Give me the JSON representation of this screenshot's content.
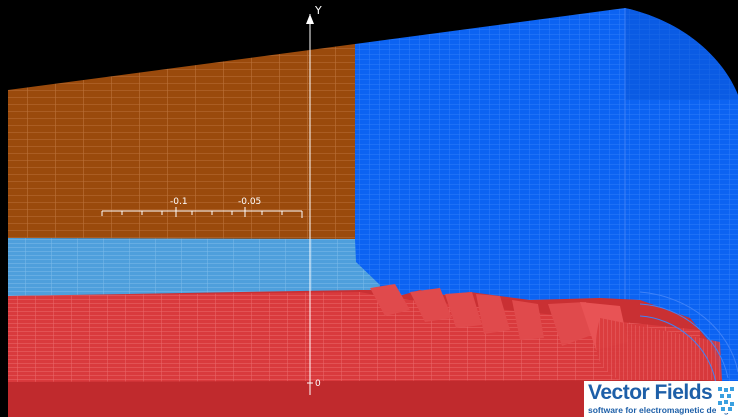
{
  "viewer": {
    "axis_y_label": "Y",
    "axis_origin_label": "0",
    "scale_tick_labels": [
      "-0.1",
      "-0.05"
    ]
  },
  "colors": {
    "background": "#000000",
    "brown_region": "#9a4a0c",
    "light_blue_region": "#4e9fdc",
    "blue_block": "#0c63f2",
    "red_coil": "#d93a3d",
    "axis": "#ffffff"
  },
  "logo": {
    "title": "Vector Fields",
    "subtitle": "software for electromagnetic design",
    "mark_icon": "vector-fields-mark-icon"
  }
}
